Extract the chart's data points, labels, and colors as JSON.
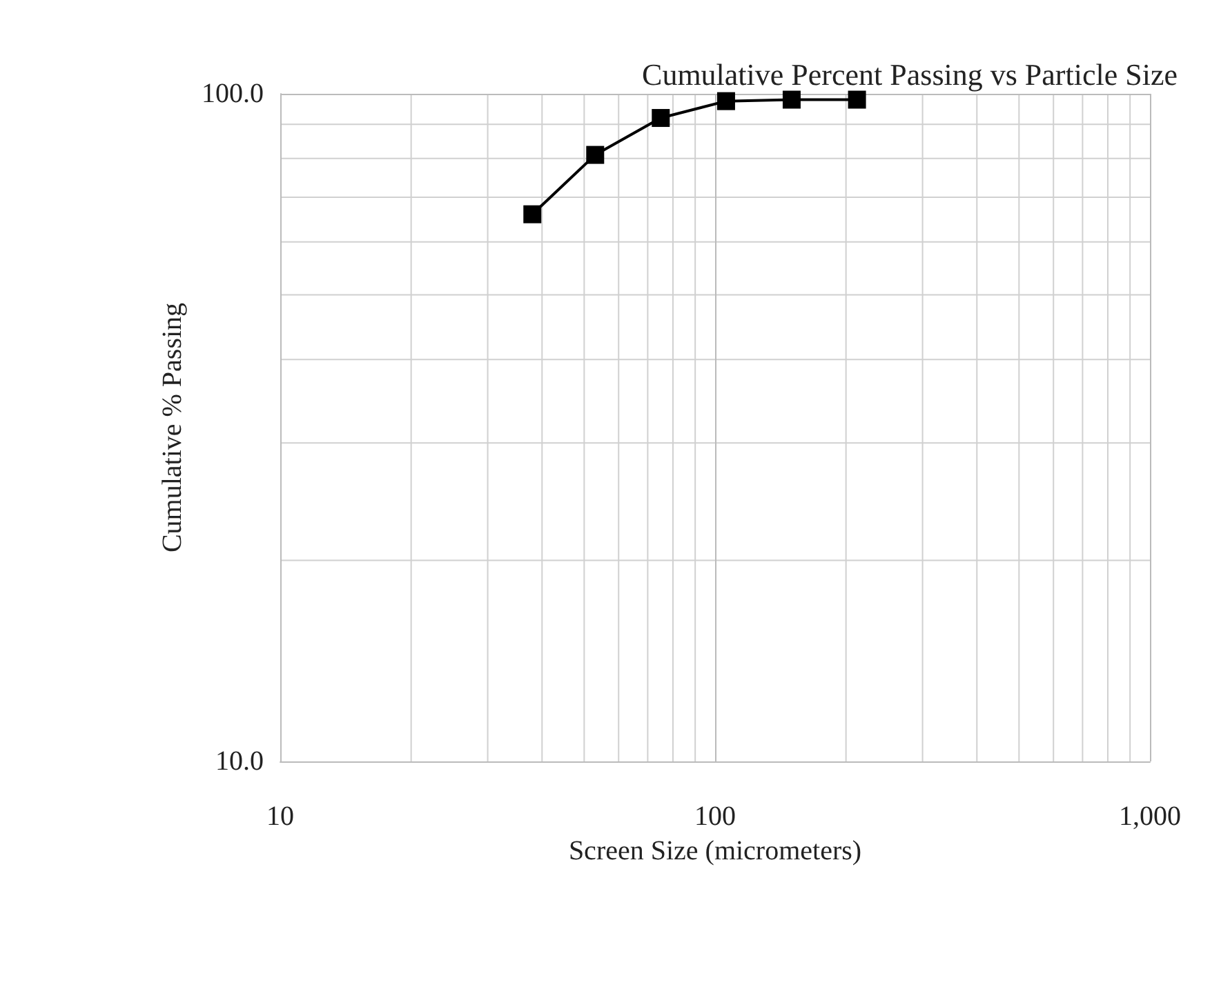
{
  "chart_data": {
    "type": "line",
    "title": "Cumulative Percent Passing vs Particle Size",
    "xlabel": "Screen Size (micrometers)",
    "ylabel": "Cumulative % Passing",
    "x": [
      38,
      53,
      75,
      106,
      150,
      212
    ],
    "series": [
      {
        "color": "#000000",
        "values": [
          66,
          81,
          92,
          97.5,
          98,
          98
        ]
      }
    ],
    "log": "xy",
    "xlim": [
      10,
      1000
    ],
    "ylim": [
      10,
      100
    ],
    "xticks": [
      10,
      100,
      {
        "value": 1000,
        "label": "1,000"
      }
    ],
    "yticks": [
      {
        "value": 10,
        "label": "10.0"
      },
      {
        "value": 100,
        "label": "100.0"
      }
    ],
    "grid": true,
    "marker": "square",
    "line_style": "solid"
  }
}
